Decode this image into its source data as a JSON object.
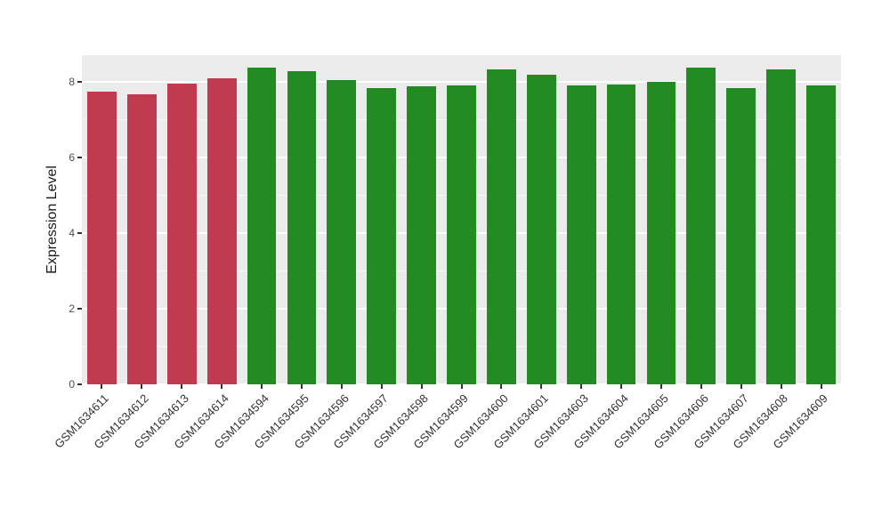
{
  "chart_data": {
    "type": "bar",
    "title": "",
    "xlabel": "",
    "ylabel": "Expression Level",
    "categories": [
      "GSM1634611",
      "GSM1634612",
      "GSM1634613",
      "GSM1634614",
      "GSM1634594",
      "GSM1634595",
      "GSM1634596",
      "GSM1634597",
      "GSM1634598",
      "GSM1634599",
      "GSM1634600",
      "GSM1634601",
      "GSM1634603",
      "GSM1634604",
      "GSM1634605",
      "GSM1634606",
      "GSM1634607",
      "GSM1634608",
      "GSM1634609"
    ],
    "values": [
      7.74,
      7.67,
      7.95,
      8.1,
      8.36,
      8.28,
      8.05,
      7.84,
      7.88,
      7.91,
      8.33,
      8.18,
      7.91,
      7.93,
      8.0,
      8.36,
      7.84,
      8.33,
      7.91
    ],
    "colors": [
      "#C03A50",
      "#C03A50",
      "#C03A50",
      "#C03A50",
      "#228B22",
      "#228B22",
      "#228B22",
      "#228B22",
      "#228B22",
      "#228B22",
      "#228B22",
      "#228B22",
      "#228B22",
      "#228B22",
      "#228B22",
      "#228B22",
      "#228B22",
      "#228B22",
      "#228B22"
    ],
    "ylim": [
      0,
      8.7
    ],
    "yticks": [
      0,
      2,
      4,
      6,
      8
    ],
    "yticks_minor": [
      1,
      3,
      5,
      7
    ],
    "grid": "on",
    "legend": "none",
    "panel_background": "#EBEBEB",
    "gridline_color": "#FFFFFF"
  }
}
